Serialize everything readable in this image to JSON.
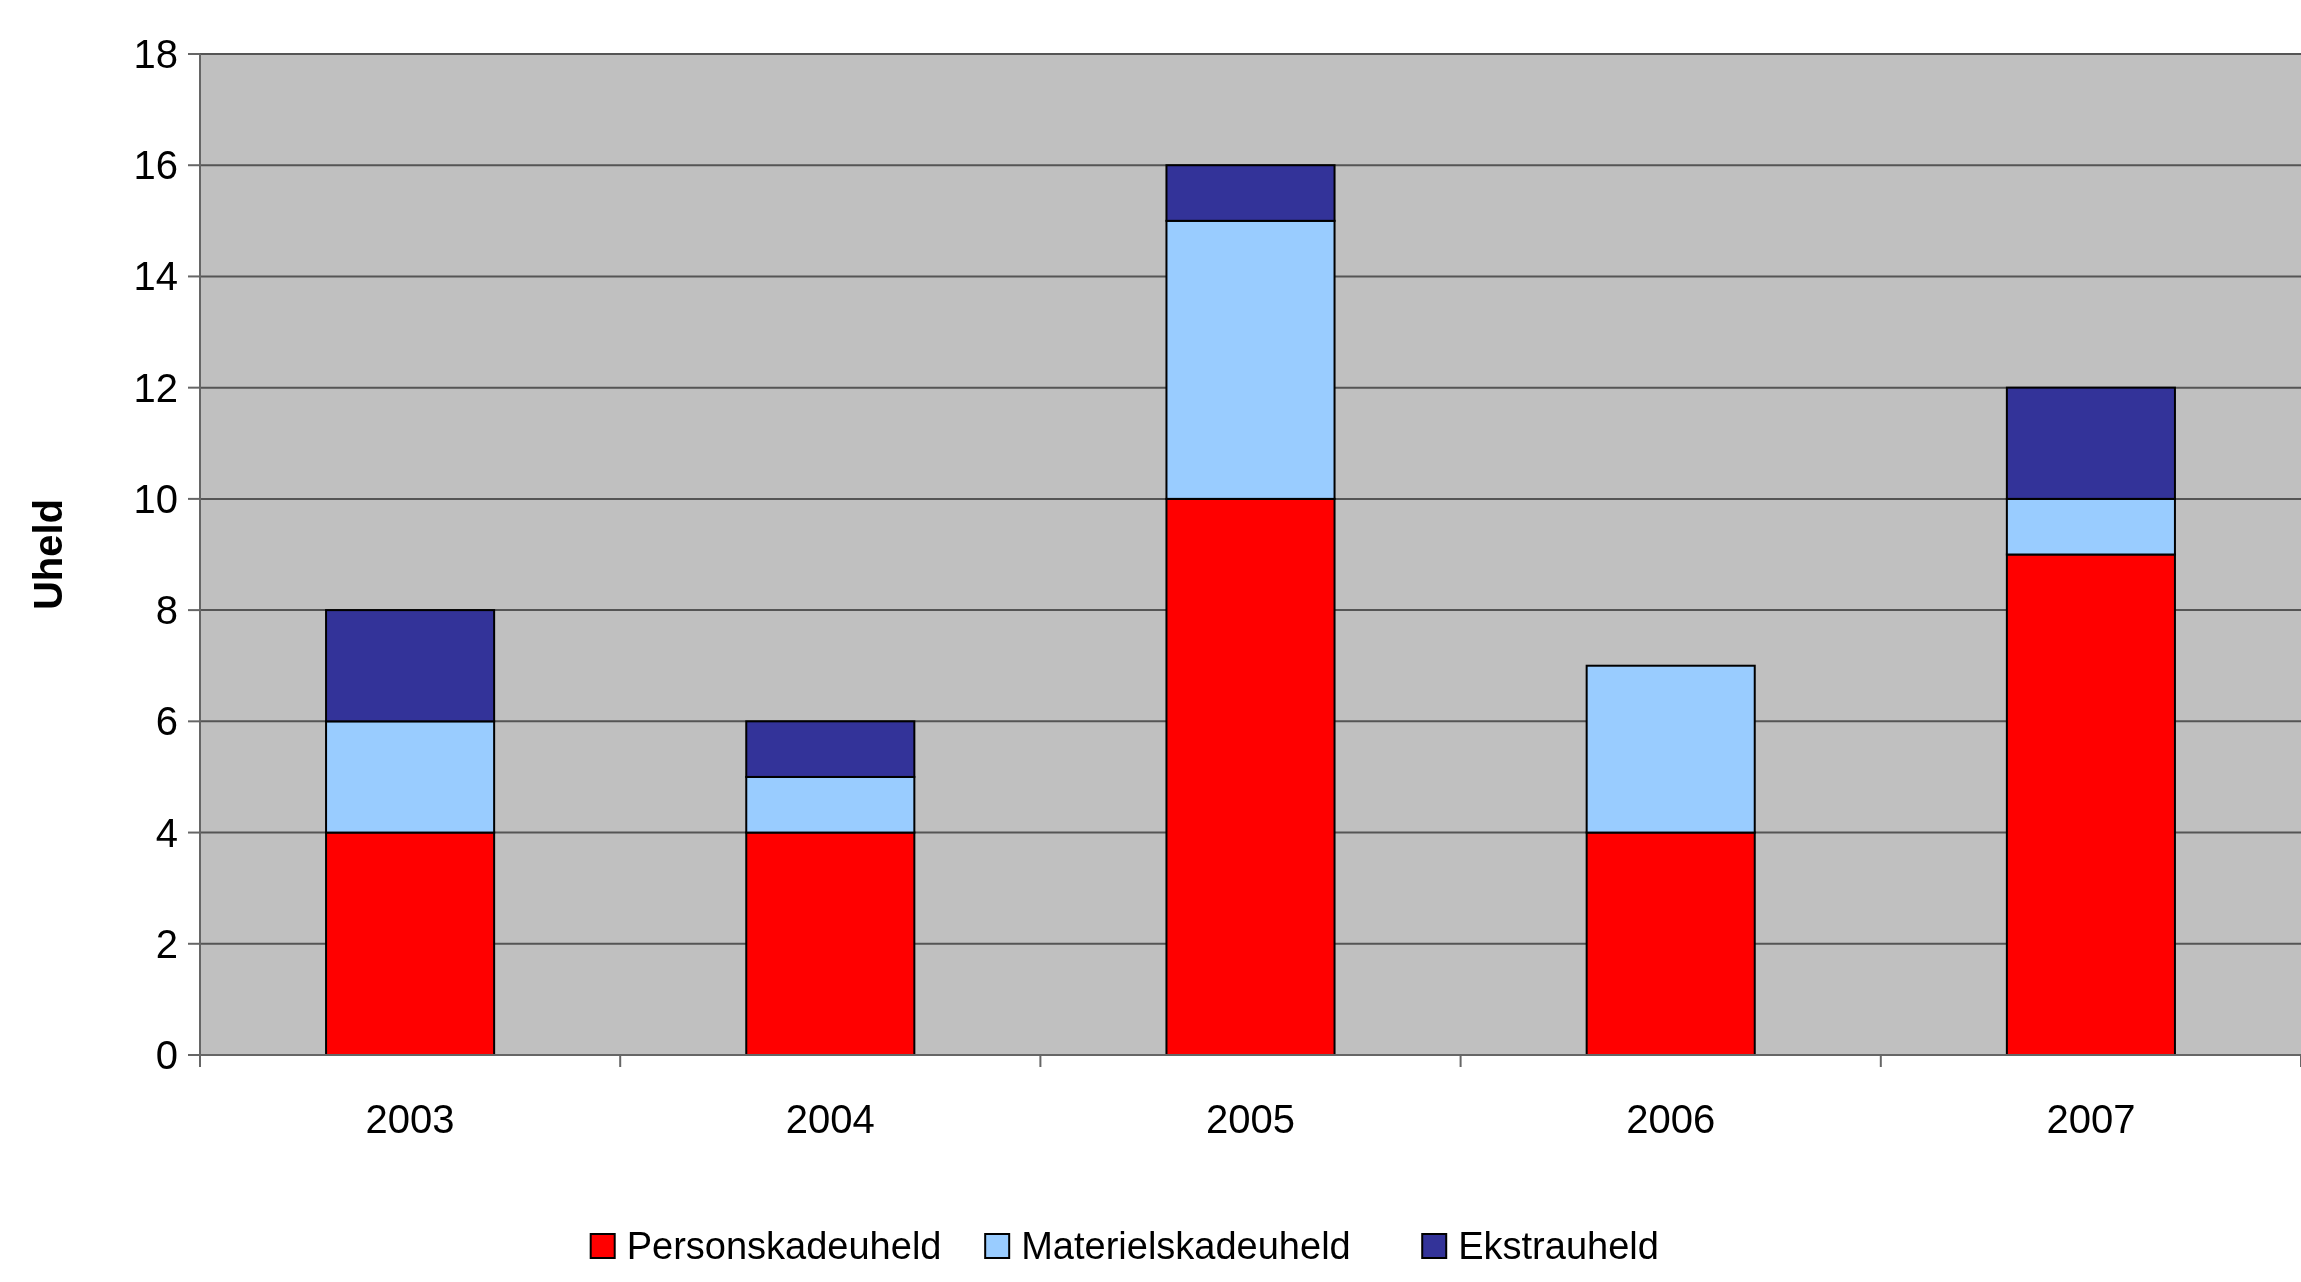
{
  "chart_data": {
    "type": "bar",
    "stacked": true,
    "ylabel": "Uheld",
    "categories": [
      "2003",
      "2004",
      "2005",
      "2006",
      "2007"
    ],
    "series": [
      {
        "name": "Personskadeuheld",
        "color": "#ff0000",
        "values": [
          4,
          4,
          10,
          4,
          9
        ]
      },
      {
        "name": "Materielskadeuheld",
        "color": "#99ccff",
        "values": [
          2,
          1,
          5,
          3,
          1
        ]
      },
      {
        "name": "Ekstrauheld",
        "color": "#333399",
        "values": [
          2,
          1,
          1,
          0,
          2
        ]
      }
    ],
    "ylim": [
      0,
      18
    ],
    "yticks": [
      0,
      2,
      4,
      6,
      8,
      10,
      12,
      14,
      16,
      18
    ],
    "grid": "y",
    "legend": "bottom"
  }
}
